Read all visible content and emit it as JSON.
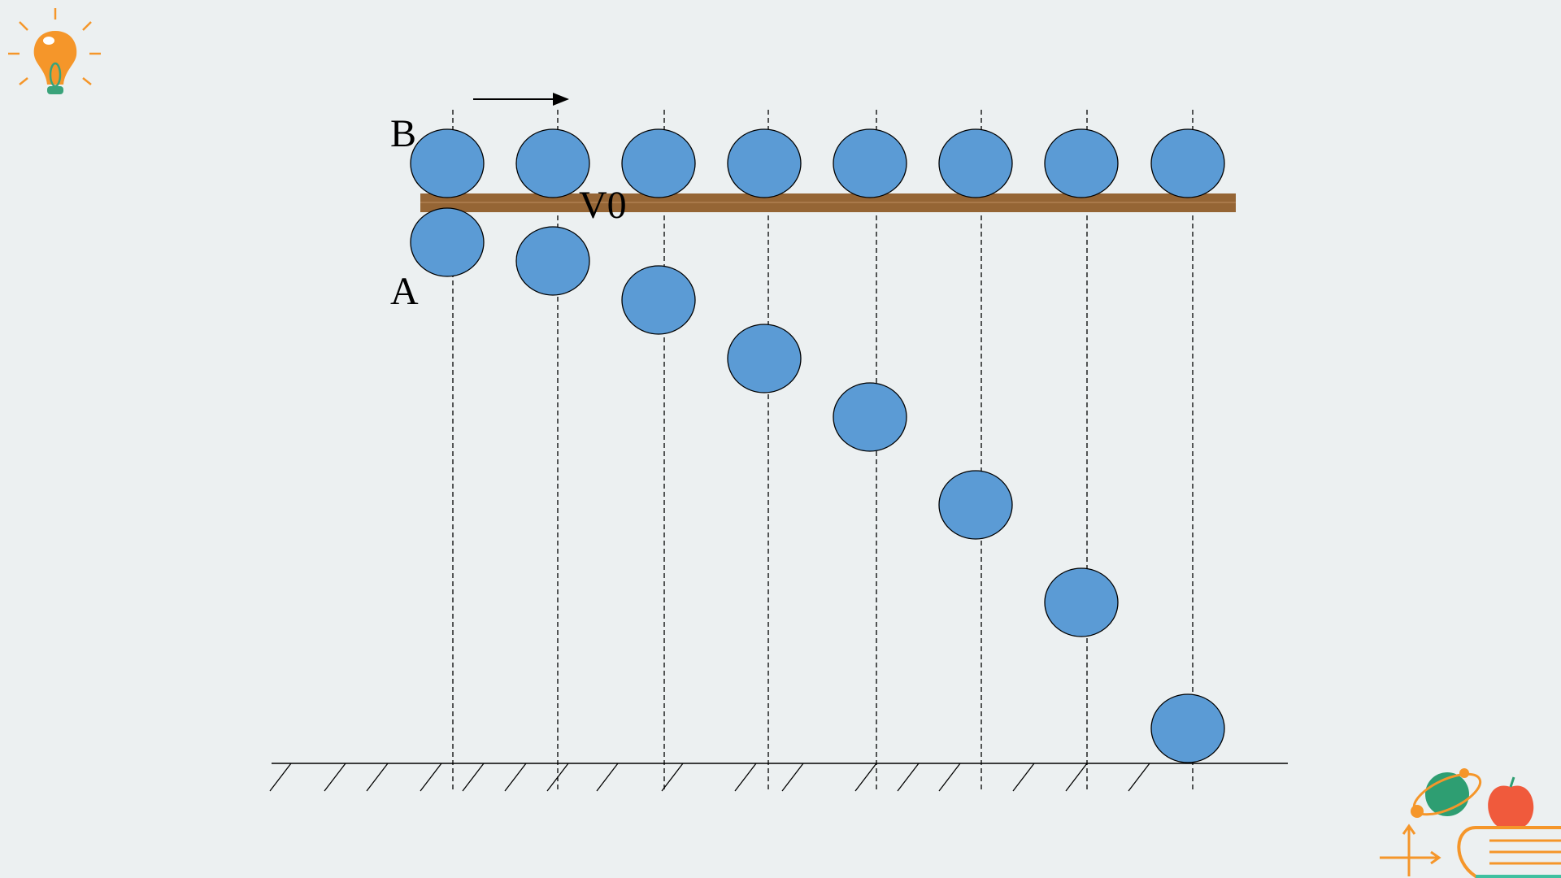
{
  "labels": {
    "b": "B",
    "a": "A",
    "v0": "V0"
  }
}
